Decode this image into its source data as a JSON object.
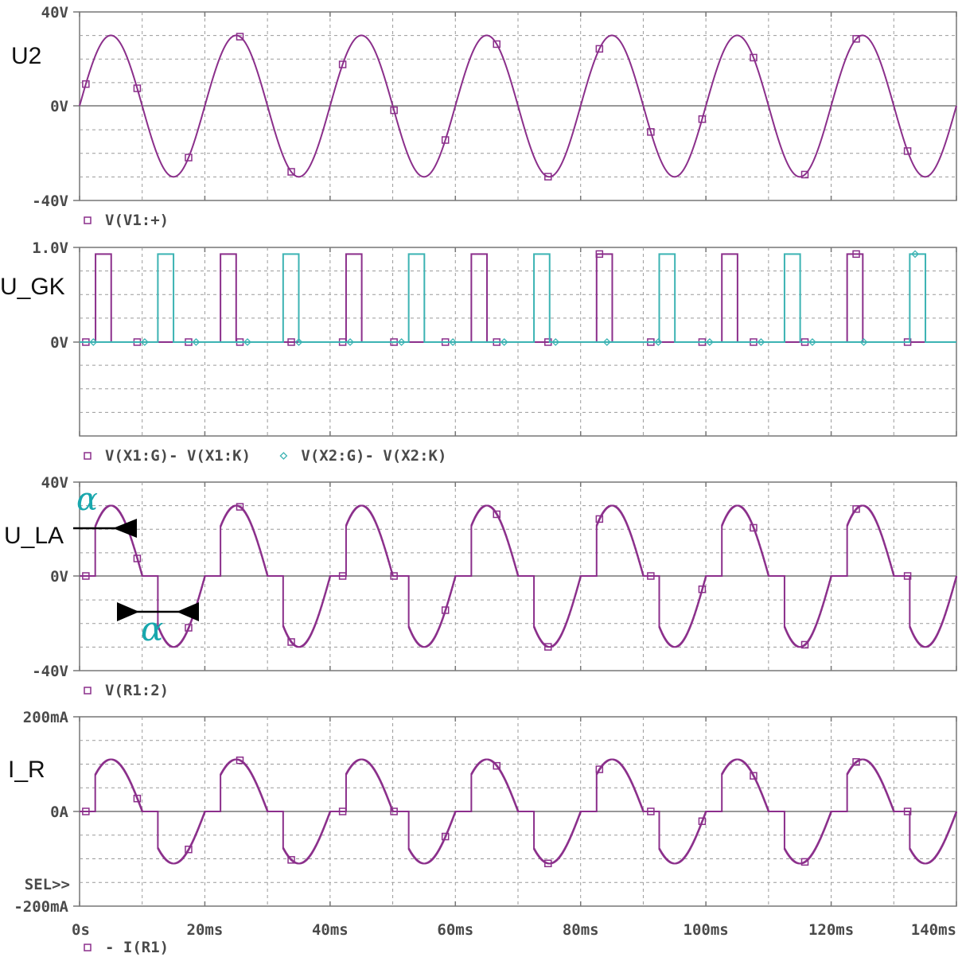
{
  "chart_data": {
    "type": "line",
    "x_axis": {
      "ticks": [
        "0s",
        "20ms",
        "40ms",
        "60ms",
        "80ms",
        "100ms",
        "120ms",
        "140ms"
      ],
      "range_ms": [
        0,
        140
      ],
      "grid": true
    },
    "sel_marker": "SEL>>",
    "colors": {
      "magenta": "#8b2f8b",
      "cyan": "#3cb3b3",
      "axis": "#777777",
      "grid": "#9a9a9a"
    },
    "panels": [
      {
        "id": "u2",
        "side_label": "U2",
        "y_ticks": [
          "40V",
          "0V",
          "-40V"
        ],
        "ylim": [
          -40,
          40
        ],
        "legend": [
          {
            "marker": "square",
            "text": "V(V1:+)",
            "color": "#8b2f8b"
          }
        ],
        "series": [
          {
            "name": "V(V1:+)",
            "kind": "sine",
            "amplitude_v": 30,
            "period_ms": 20,
            "phase_offset_ms": 0
          }
        ]
      },
      {
        "id": "ugk",
        "side_label": "U_GK",
        "y_ticks": [
          "1.0V",
          "0V"
        ],
        "ylim": [
          -1,
          1
        ],
        "legend": [
          {
            "marker": "square",
            "text": "V(X1:G)- V(X1:K)",
            "color": "#8b2f8b"
          },
          {
            "marker": "diamond",
            "text": "V(X2:G)- V(X2:K)",
            "color": "#3cb3b3"
          }
        ],
        "series": [
          {
            "name": "V(X1:G)- V(X1:K)",
            "kind": "pulse",
            "high_v": 0.93,
            "first_start_ms": 2.5,
            "width_ms": 2.5,
            "period_ms": 20
          },
          {
            "name": "V(X2:G)- V(X2:K)",
            "kind": "pulse",
            "high_v": 0.93,
            "first_start_ms": 12.5,
            "width_ms": 2.5,
            "period_ms": 20
          }
        ]
      },
      {
        "id": "ula",
        "side_label": "U_LA",
        "y_ticks": [
          "40V",
          "0V",
          "-40V"
        ],
        "ylim": [
          -40,
          40
        ],
        "legend": [
          {
            "marker": "square",
            "text": "V(R1:2)",
            "color": "#8b2f8b"
          }
        ],
        "annotation_symbol": "α",
        "series": [
          {
            "name": "V(R1:2)",
            "kind": "chopped_sine",
            "amplitude_v": 30,
            "period_ms": 20,
            "firing_delay_ms": 2.5
          }
        ]
      },
      {
        "id": "ir",
        "side_label": "I_R",
        "y_ticks": [
          "200mA",
          "0A",
          "-200mA"
        ],
        "ylim": [
          -200,
          200
        ],
        "legend": [
          {
            "marker": "square",
            "text": "- I(R1)",
            "color": "#8b2f8b"
          }
        ],
        "series": [
          {
            "name": "- I(R1)",
            "kind": "chopped_sine",
            "amplitude_ma": 110,
            "period_ms": 20,
            "firing_delay_ms": 2.5
          }
        ]
      }
    ]
  }
}
